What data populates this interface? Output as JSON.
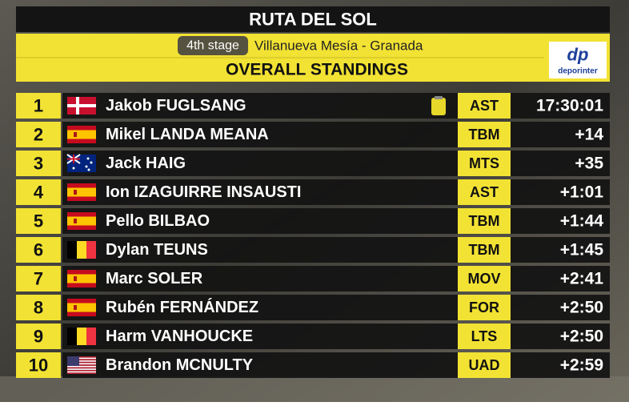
{
  "header": {
    "title": "RUTA DEL SOL",
    "stage": "4th stage",
    "route": "Villanueva Mesía - Granada",
    "subtitle": "OVERALL STANDINGS",
    "logo_mark": "dp",
    "logo": "deporinter"
  },
  "table": {
    "rows": [
      [
        "1",
        "Jakob FUGLSANG",
        "AST",
        "17:30:01"
      ],
      [
        "2",
        "Mikel LANDA MEANA",
        "TBM",
        "+14"
      ],
      [
        "3",
        "Jack HAIG",
        "MTS",
        "+35"
      ],
      [
        "4",
        "Ion IZAGUIRRE INSAUSTI",
        "AST",
        "+1:01"
      ],
      [
        "5",
        "Pello BILBAO",
        "TBM",
        "+1:44"
      ],
      [
        "6",
        "Dylan TEUNS",
        "TBM",
        "+1:45"
      ],
      [
        "7",
        "Marc SOLER",
        "MOV",
        "+2:41"
      ],
      [
        "8",
        "Rubén FERNÁNDEZ",
        "FOR",
        "+2:50"
      ],
      [
        "9",
        "Harm VANHOUCKE",
        "LTS",
        "+2:50"
      ],
      [
        "10",
        "Brandon MCNULTY",
        "UAD",
        "+2:59"
      ]
    ]
  }
}
